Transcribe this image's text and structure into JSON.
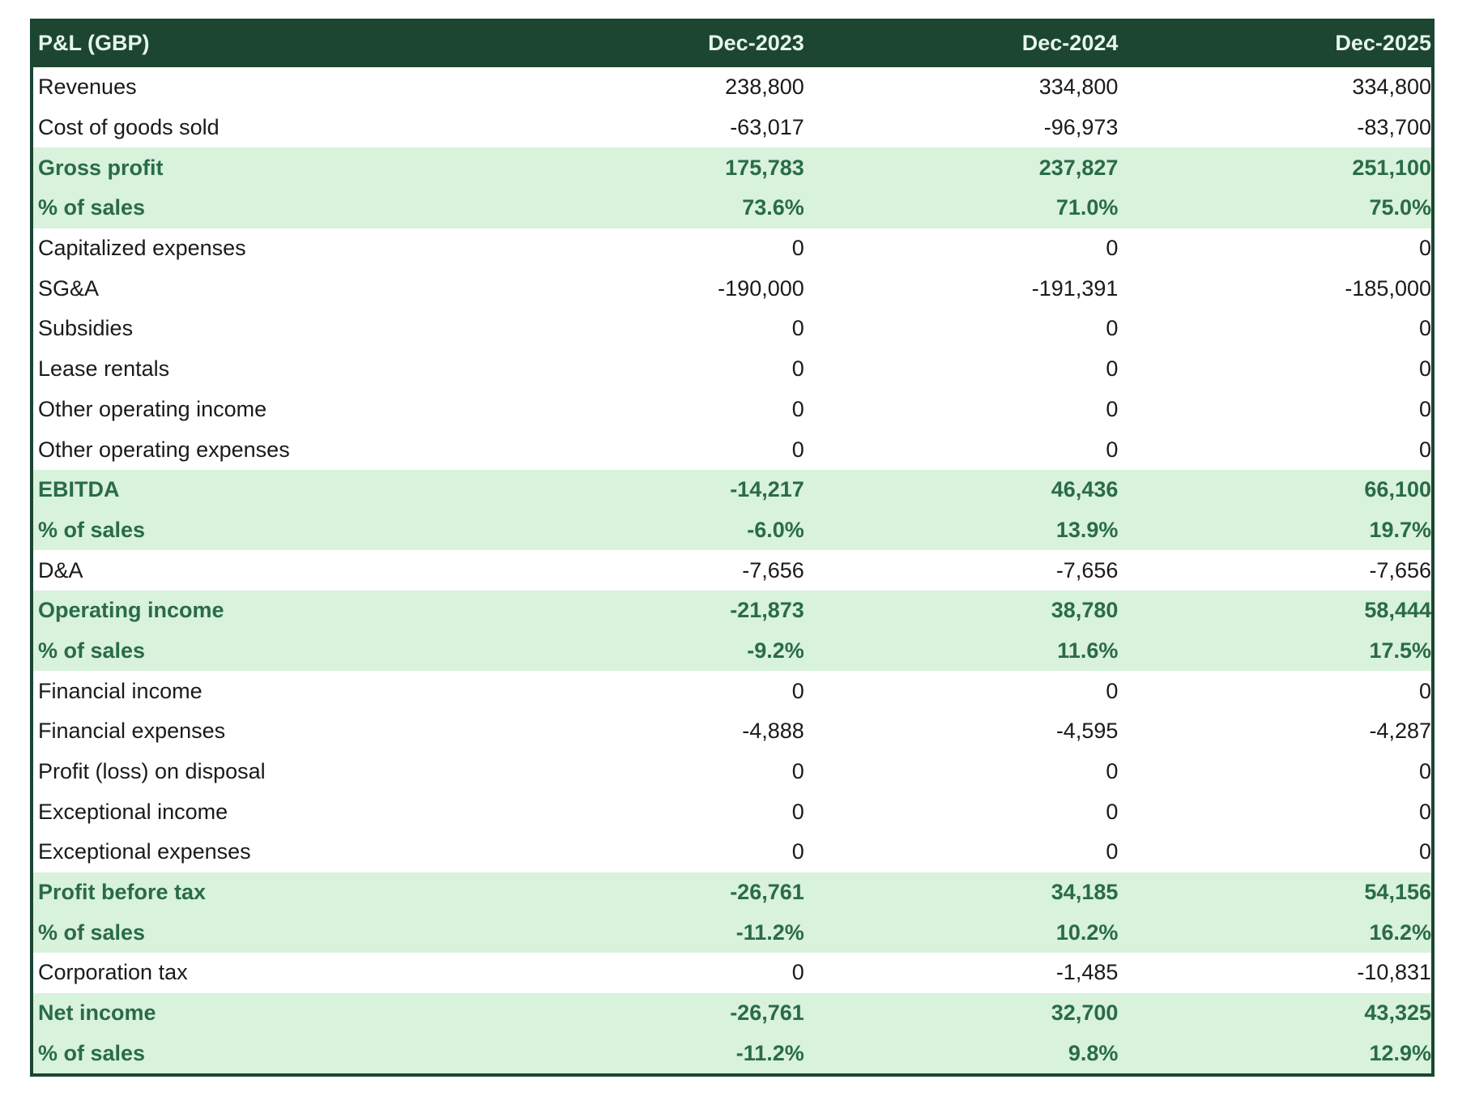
{
  "colors": {
    "header_bg": "#1c4532",
    "header_text": "#e6f5ea",
    "highlight_bg": "#d8f2dc",
    "highlight_text": "#2a6b48"
  },
  "header": {
    "title": "P&L (GBP)",
    "columns": [
      "Dec-2023",
      "Dec-2024",
      "Dec-2025"
    ]
  },
  "rows": [
    {
      "label": "Revenues",
      "values": [
        "238,800",
        "334,800",
        "334,800"
      ],
      "highlight": false
    },
    {
      "label": "Cost of goods sold",
      "values": [
        "-63,017",
        "-96,973",
        "-83,700"
      ],
      "highlight": false
    },
    {
      "label": "Gross profit",
      "values": [
        "175,783",
        "237,827",
        "251,100"
      ],
      "highlight": true
    },
    {
      "label": "% of sales",
      "values": [
        "73.6%",
        "71.0%",
        "75.0%"
      ],
      "highlight": true
    },
    {
      "label": "Capitalized expenses",
      "values": [
        "0",
        "0",
        "0"
      ],
      "highlight": false
    },
    {
      "label": "SG&A",
      "values": [
        "-190,000",
        "-191,391",
        "-185,000"
      ],
      "highlight": false
    },
    {
      "label": "Subsidies",
      "values": [
        "0",
        "0",
        "0"
      ],
      "highlight": false
    },
    {
      "label": "Lease rentals",
      "values": [
        "0",
        "0",
        "0"
      ],
      "highlight": false
    },
    {
      "label": "Other operating income",
      "values": [
        "0",
        "0",
        "0"
      ],
      "highlight": false
    },
    {
      "label": "Other operating expenses",
      "values": [
        "0",
        "0",
        "0"
      ],
      "highlight": false
    },
    {
      "label": "EBITDA",
      "values": [
        "-14,217",
        "46,436",
        "66,100"
      ],
      "highlight": true
    },
    {
      "label": "% of sales",
      "values": [
        "-6.0%",
        "13.9%",
        "19.7%"
      ],
      "highlight": true
    },
    {
      "label": "D&A",
      "values": [
        "-7,656",
        "-7,656",
        "-7,656"
      ],
      "highlight": false
    },
    {
      "label": "Operating income",
      "values": [
        "-21,873",
        "38,780",
        "58,444"
      ],
      "highlight": true
    },
    {
      "label": "% of sales",
      "values": [
        "-9.2%",
        "11.6%",
        "17.5%"
      ],
      "highlight": true
    },
    {
      "label": "Financial income",
      "values": [
        "0",
        "0",
        "0"
      ],
      "highlight": false
    },
    {
      "label": "Financial expenses",
      "values": [
        "-4,888",
        "-4,595",
        "-4,287"
      ],
      "highlight": false
    },
    {
      "label": "Profit (loss) on disposal",
      "values": [
        "0",
        "0",
        "0"
      ],
      "highlight": false
    },
    {
      "label": "Exceptional income",
      "values": [
        "0",
        "0",
        "0"
      ],
      "highlight": false
    },
    {
      "label": "Exceptional expenses",
      "values": [
        "0",
        "0",
        "0"
      ],
      "highlight": false
    },
    {
      "label": "Profit before tax",
      "values": [
        "-26,761",
        "34,185",
        "54,156"
      ],
      "highlight": true
    },
    {
      "label": "% of sales",
      "values": [
        "-11.2%",
        "10.2%",
        "16.2%"
      ],
      "highlight": true
    },
    {
      "label": "Corporation tax",
      "values": [
        "0",
        "-1,485",
        "-10,831"
      ],
      "highlight": false
    },
    {
      "label": "Net income",
      "values": [
        "-26,761",
        "32,700",
        "43,325"
      ],
      "highlight": true
    },
    {
      "label": "% of sales",
      "values": [
        "-11.2%",
        "9.8%",
        "12.9%"
      ],
      "highlight": true
    }
  ]
}
